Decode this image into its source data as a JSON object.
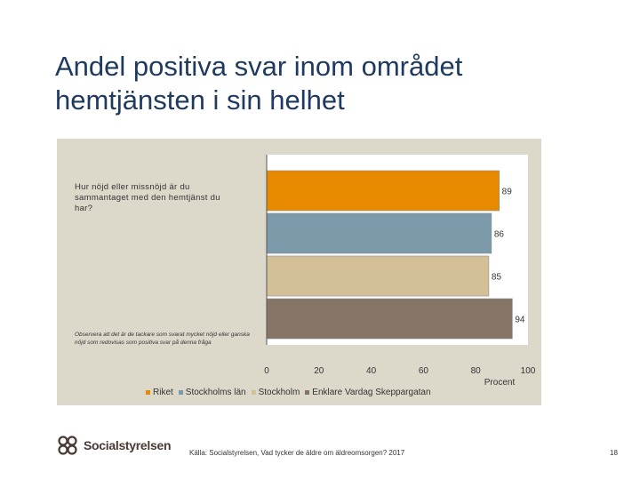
{
  "title": "Andel positiva svar inom området hemtjänsten i sin helhet",
  "question": "Hur nöjd eller missnöjd är du sammantaget med den hemtjänst du har?",
  "note": "Observera att det är de tackare som svarat mycket nöjd eller ganska nöjd som redovisas som positiva svar på denna fråga",
  "chart_data": {
    "type": "bar",
    "orientation": "horizontal",
    "categories": [
      "Hur nöjd eller missnöjd är du sammantaget med den hemtjänst du har?"
    ],
    "series": [
      {
        "name": "Riket",
        "values": [
          89
        ],
        "color": "#e88a00"
      },
      {
        "name": "Stockholms län",
        "values": [
          86
        ],
        "color": "#7d9aaa"
      },
      {
        "name": "Stockholm",
        "values": [
          85
        ],
        "color": "#d4c096"
      },
      {
        "name": "Enklare Vardag Skeppargatan",
        "values": [
          94
        ],
        "color": "#857566"
      }
    ],
    "xlim": [
      0,
      100
    ],
    "xticks": [
      0,
      20,
      40,
      60,
      80,
      100
    ],
    "xlabel": "Procent",
    "grid": false,
    "legend": "bottom"
  },
  "legend": {
    "items": [
      "Riket",
      "Stockholms län",
      "Stockholm",
      "Enklare Vardag Skeppargatan"
    ]
  },
  "footer": {
    "logo_text": "Socialstyrelsen",
    "source": "Källa: Socialstyrelsen, Vad tycker de äldre om äldreomsorgen? 2017",
    "page_number": "18"
  }
}
